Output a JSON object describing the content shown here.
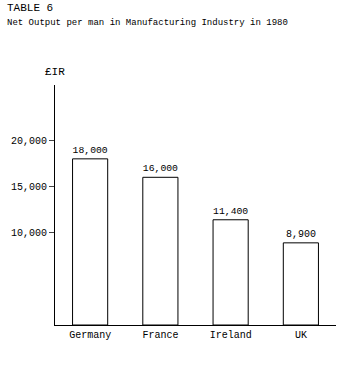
{
  "chart_data": {
    "type": "bar",
    "title": "TABLE 6",
    "subtitle": "Net Output per man in Manufacturing Industry in 1980",
    "ylabel": "£IR",
    "categories": [
      "Germany",
      "France",
      "Ireland",
      "UK"
    ],
    "values": [
      18000,
      16000,
      11400,
      8900
    ],
    "value_labels": [
      "18,000",
      "16,000",
      "11,400",
      "8,900"
    ],
    "data_labels": true,
    "color": "white",
    "ylim": [
      0,
      26000
    ],
    "yticks": [
      {
        "value": 10000,
        "label": "10,000"
      },
      {
        "value": 15000,
        "label": "15,000"
      },
      {
        "value": 20000,
        "label": "20,000"
      }
    ],
    "grid": false
  }
}
